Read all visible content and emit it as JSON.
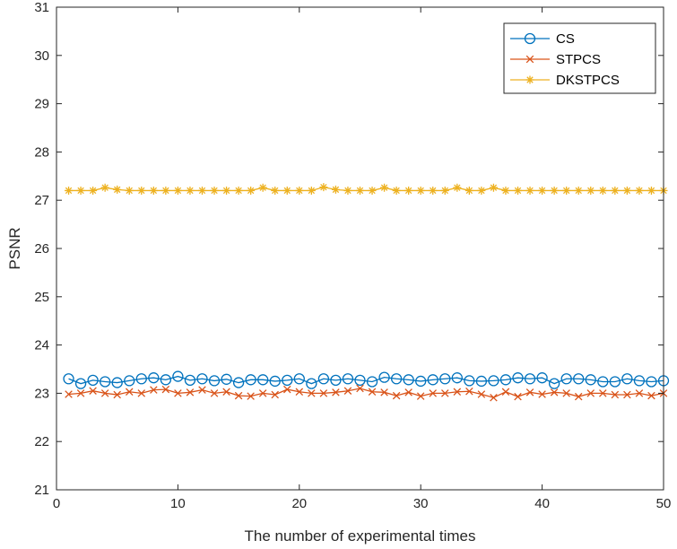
{
  "chart_data": {
    "type": "line",
    "title": "",
    "xlabel": "The number of experimental times",
    "ylabel": "PSNR",
    "xlim": [
      0,
      50
    ],
    "ylim": [
      21,
      31
    ],
    "xticks": [
      0,
      10,
      20,
      30,
      40,
      50
    ],
    "yticks": [
      21,
      22,
      23,
      24,
      25,
      26,
      27,
      28,
      29,
      30,
      31
    ],
    "grid": false,
    "legend_position": "top-right",
    "x": [
      1,
      2,
      3,
      4,
      5,
      6,
      7,
      8,
      9,
      10,
      11,
      12,
      13,
      14,
      15,
      16,
      17,
      18,
      19,
      20,
      21,
      22,
      23,
      24,
      25,
      26,
      27,
      28,
      29,
      30,
      31,
      32,
      33,
      34,
      35,
      36,
      37,
      38,
      39,
      40,
      41,
      42,
      43,
      44,
      45,
      46,
      47,
      48,
      49,
      50
    ],
    "series": [
      {
        "name": "CS",
        "color": "#0072BD",
        "marker": "circle",
        "values": [
          23.3,
          23.2,
          23.27,
          23.24,
          23.22,
          23.26,
          23.3,
          23.32,
          23.28,
          23.35,
          23.27,
          23.3,
          23.26,
          23.29,
          23.22,
          23.28,
          23.28,
          23.25,
          23.27,
          23.3,
          23.2,
          23.3,
          23.27,
          23.3,
          23.27,
          23.24,
          23.33,
          23.3,
          23.28,
          23.25,
          23.28,
          23.3,
          23.32,
          23.26,
          23.25,
          23.26,
          23.28,
          23.32,
          23.3,
          23.32,
          23.2,
          23.3,
          23.3,
          23.28,
          23.24,
          23.24,
          23.3,
          23.26,
          23.24,
          23.26
        ]
      },
      {
        "name": "STPCS",
        "color": "#D95319",
        "marker": "x",
        "values": [
          22.98,
          23.0,
          23.05,
          23.0,
          22.97,
          23.03,
          23.0,
          23.07,
          23.08,
          23.0,
          23.02,
          23.07,
          23.0,
          23.03,
          22.95,
          22.94,
          23.0,
          22.97,
          23.08,
          23.03,
          23.0,
          23.0,
          23.02,
          23.05,
          23.1,
          23.03,
          23.02,
          22.95,
          23.02,
          22.94,
          23.0,
          23.0,
          23.03,
          23.04,
          22.98,
          22.91,
          23.03,
          22.93,
          23.02,
          22.98,
          23.02,
          23.0,
          22.93,
          23.0,
          23.0,
          22.97,
          22.97,
          23.0,
          22.95,
          23.0
        ]
      },
      {
        "name": "DKSTPCS",
        "color": "#EDB120",
        "marker": "star",
        "values": [
          27.2,
          27.2,
          27.2,
          27.26,
          27.22,
          27.2,
          27.2,
          27.2,
          27.2,
          27.2,
          27.2,
          27.2,
          27.2,
          27.2,
          27.2,
          27.2,
          27.26,
          27.2,
          27.2,
          27.2,
          27.2,
          27.27,
          27.22,
          27.2,
          27.2,
          27.2,
          27.26,
          27.2,
          27.2,
          27.2,
          27.2,
          27.2,
          27.26,
          27.2,
          27.2,
          27.26,
          27.2,
          27.2,
          27.2,
          27.2,
          27.2,
          27.2,
          27.2,
          27.2,
          27.2,
          27.2,
          27.2,
          27.2,
          27.2,
          27.2
        ]
      }
    ]
  }
}
